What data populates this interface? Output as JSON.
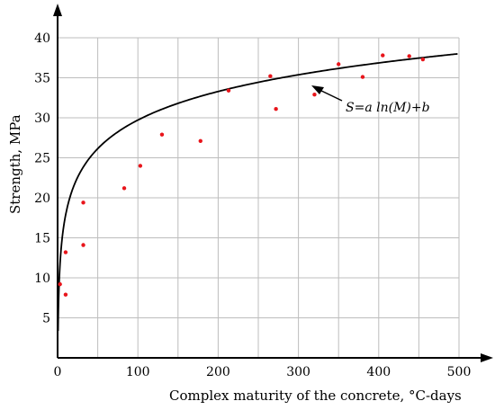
{
  "chart_data": {
    "type": "scatter",
    "xlabel": "Complex maturity of the concrete, °C-days",
    "ylabel": "Strength, MPa",
    "xlim": [
      0,
      500
    ],
    "ylim": [
      0,
      40
    ],
    "xticks": [
      0,
      100,
      200,
      300,
      400,
      500
    ],
    "yticks": [
      5,
      10,
      15,
      20,
      25,
      30,
      35,
      40
    ],
    "grid": true,
    "annotation": "S=a ln(M)+b",
    "points_color": "#e8151b",
    "curve_color": "#000000",
    "points": {
      "x": [
        3,
        10,
        10,
        32,
        32,
        83,
        103,
        130,
        178,
        213,
        265,
        272,
        320,
        350,
        380,
        405,
        438,
        455
      ],
      "y": [
        9.2,
        13.2,
        7.9,
        19.4,
        14.1,
        21.2,
        24.0,
        27.9,
        27.1,
        33.4,
        35.2,
        31.1,
        32.9,
        36.7,
        35.1,
        37.8,
        37.7,
        37.3
      ]
    },
    "fit": {
      "a": 5.15,
      "b": 6.0
    }
  }
}
